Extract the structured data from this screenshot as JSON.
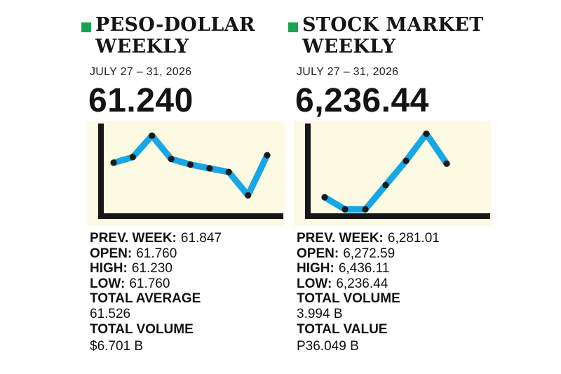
{
  "colors": {
    "accent_green": "#1aa350",
    "line_blue": "#17a6e6",
    "chart_bg": "#fdfae3",
    "axis": "#161616",
    "marker": "#1a1a1a"
  },
  "peso_dollar": {
    "title_line1": "PESO-DOLLAR",
    "title_line2": "WEEKLY",
    "dates": "JULY 27 – 31, 2026",
    "value": "61.240",
    "stats": {
      "prev_week_label": "PREV. WEEK:",
      "prev_week_value": "61.847",
      "open_label": "OPEN:",
      "open_value": "61.760",
      "high_label": "HIGH:",
      "high_value": "61.230",
      "low_label": "LOW:",
      "low_value": "61.760",
      "total_average_label": "TOTAL AVERAGE",
      "total_average_value": "61.526",
      "total_volume_label": "TOTAL VOLUME",
      "total_volume_value": "$6.701 B"
    }
  },
  "stock_market": {
    "title_line1": "STOCK MARKET",
    "title_line2": "WEEKLY",
    "dates": "JULY 27 – 31, 2026",
    "value": "6,236.44",
    "stats": {
      "prev_week_label": "PREV. WEEK:",
      "prev_week_value": "6,281.01",
      "open_label": "OPEN:",
      "open_value": "6,272.59",
      "high_label": "HIGH:",
      "high_value": "6,436.11",
      "low_label": "LOW:",
      "low_value": "6,236.44",
      "total_volume_label": "TOTAL VOLUME",
      "total_volume_value": "3.994 B",
      "total_value_label": "TOTAL VALUE",
      "total_value_value": "P36.049 B"
    }
  },
  "chart_data": [
    {
      "type": "line",
      "title": "",
      "xlabel": "",
      "ylabel": "",
      "x": [
        1,
        2,
        3,
        4,
        5,
        6,
        7,
        8,
        9
      ],
      "series": [
        {
          "values": [
            0.64,
            0.7,
            0.93,
            0.68,
            0.62,
            0.58,
            0.54,
            0.29,
            0.72
          ]
        }
      ],
      "ylim": [
        0,
        1
      ],
      "grid": false,
      "markers": true
    },
    {
      "type": "line",
      "title": "",
      "xlabel": "",
      "ylabel": "",
      "x": [
        1,
        2,
        3,
        4,
        5,
        6,
        7
      ],
      "series": [
        {
          "values": [
            0.27,
            0.14,
            0.14,
            0.4,
            0.66,
            0.95,
            0.63
          ]
        }
      ],
      "ylim": [
        0,
        1
      ],
      "grid": false,
      "markers": true
    }
  ]
}
